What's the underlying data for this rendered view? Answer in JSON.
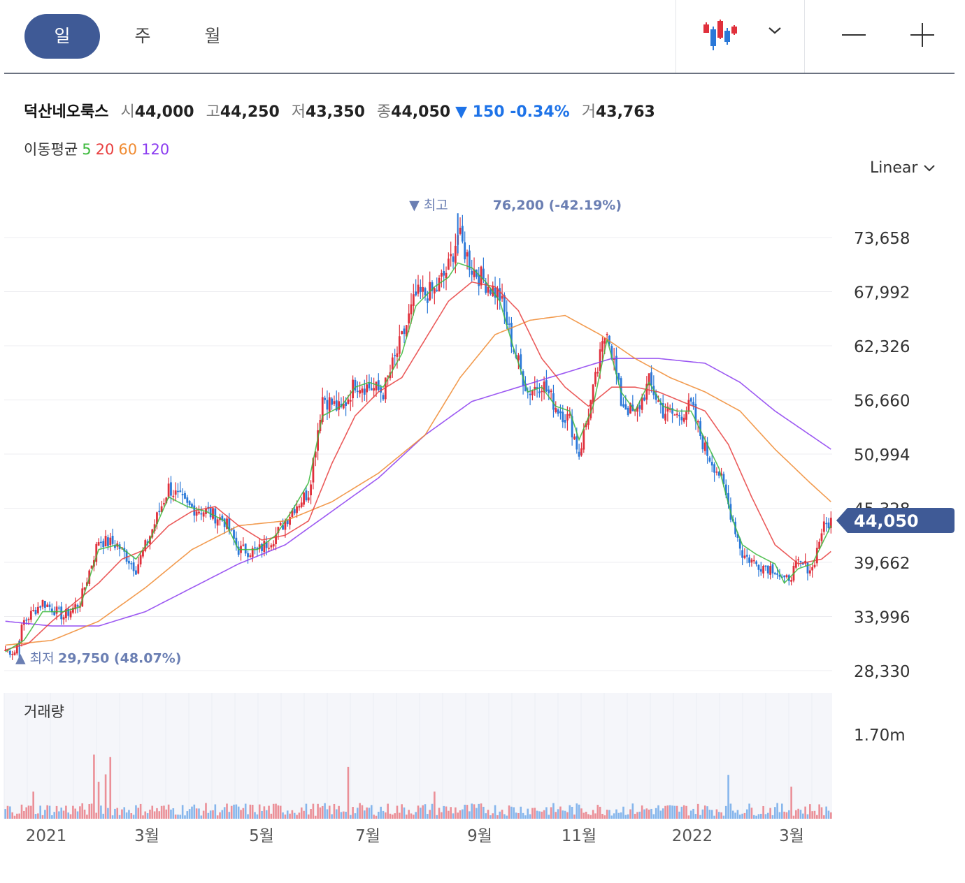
{
  "tabs": [
    "일",
    "주",
    "월"
  ],
  "active_tab": "일",
  "toolbar_icons": [
    "candlestick-chart-icon",
    "chevron-down-icon",
    "zoom-out-icon",
    "zoom-in-icon"
  ],
  "stock": {
    "name": "덕산네오룩스",
    "open_label": "시",
    "open": "44,000",
    "high_label": "고",
    "high": "44,250",
    "low_label": "저",
    "low": "43,350",
    "close_label": "종",
    "close": "44,050",
    "change": "▼ 150 -0.34%",
    "volume_label": "거",
    "volume": "43,763"
  },
  "moving_average": {
    "label": "이동평균",
    "periods": [
      "5",
      "20",
      "60",
      "120"
    ],
    "colors": [
      "#3cb93c",
      "#e83e3e",
      "#f08a30",
      "#8b3cf0"
    ]
  },
  "scale_label": "Linear",
  "colors": {
    "up": "#e0303c",
    "down": "#2a78d8",
    "accent": "#3f5a96",
    "annotation": "#6b7fb3"
  },
  "chart_data": {
    "type": "candlestick",
    "y_ticks": [
      "73,658",
      "67,992",
      "62,326",
      "56,660",
      "50,994",
      "45,328",
      "39,662",
      "33,996",
      "28,330"
    ],
    "ylim": [
      28330,
      76200
    ],
    "x_ticks": [
      "2021",
      "3월",
      "5월",
      "7월",
      "9월",
      "11월",
      "2022",
      "3월"
    ],
    "current_price_label": "44,050",
    "high_annotation": {
      "label": "▼ 최고",
      "value": "76,200 (-42.19%)"
    },
    "low_annotation": {
      "label": "▲ 최저",
      "value": "29,750 (48.07%)"
    },
    "volume_label": "거래량",
    "volume_tick": "1.70m",
    "close_anchors": [
      [
        0,
        30500
      ],
      [
        4,
        30300
      ],
      [
        8,
        33500
      ],
      [
        16,
        35500
      ],
      [
        25,
        34000
      ],
      [
        32,
        35500
      ],
      [
        40,
        42000
      ],
      [
        48,
        41500
      ],
      [
        56,
        39000
      ],
      [
        62,
        42500
      ],
      [
        70,
        47500
      ],
      [
        78,
        45500
      ],
      [
        86,
        45000
      ],
      [
        94,
        44000
      ],
      [
        100,
        41000
      ],
      [
        108,
        40800
      ],
      [
        116,
        42500
      ],
      [
        124,
        45500
      ],
      [
        130,
        47000
      ],
      [
        136,
        57000
      ],
      [
        144,
        55500
      ],
      [
        150,
        58500
      ],
      [
        156,
        58000
      ],
      [
        162,
        57500
      ],
      [
        170,
        63000
      ],
      [
        176,
        67500
      ],
      [
        184,
        68000
      ],
      [
        190,
        70500
      ],
      [
        194,
        74000
      ],
      [
        200,
        70500
      ],
      [
        206,
        69000
      ],
      [
        212,
        67500
      ],
      [
        218,
        62000
      ],
      [
        224,
        57500
      ],
      [
        230,
        58500
      ],
      [
        236,
        56000
      ],
      [
        242,
        54500
      ],
      [
        246,
        51000
      ],
      [
        252,
        57500
      ],
      [
        258,
        64500
      ],
      [
        264,
        56500
      ],
      [
        270,
        55000
      ],
      [
        276,
        58500
      ],
      [
        282,
        55500
      ],
      [
        288,
        55000
      ],
      [
        294,
        56000
      ],
      [
        300,
        51500
      ],
      [
        306,
        49000
      ],
      [
        312,
        44000
      ],
      [
        316,
        40500
      ],
      [
        322,
        39500
      ],
      [
        330,
        39000
      ],
      [
        334,
        37500
      ],
      [
        340,
        39500
      ],
      [
        346,
        39000
      ],
      [
        350,
        43000
      ],
      [
        354,
        44050
      ]
    ],
    "ma5_anchors": [
      [
        0,
        30300
      ],
      [
        8,
        31500
      ],
      [
        16,
        34500
      ],
      [
        25,
        34500
      ],
      [
        32,
        35000
      ],
      [
        40,
        41000
      ],
      [
        48,
        41500
      ],
      [
        56,
        40000
      ],
      [
        62,
        42000
      ],
      [
        70,
        46500
      ],
      [
        78,
        45500
      ],
      [
        86,
        45000
      ],
      [
        94,
        44000
      ],
      [
        100,
        41000
      ],
      [
        108,
        41000
      ],
      [
        116,
        42500
      ],
      [
        124,
        45500
      ],
      [
        130,
        48000
      ],
      [
        136,
        55000
      ],
      [
        144,
        56000
      ],
      [
        150,
        58000
      ],
      [
        156,
        58500
      ],
      [
        162,
        58000
      ],
      [
        170,
        61500
      ],
      [
        176,
        66500
      ],
      [
        184,
        68500
      ],
      [
        190,
        69500
      ],
      [
        194,
        71000
      ],
      [
        200,
        70500
      ],
      [
        206,
        69000
      ],
      [
        212,
        67000
      ],
      [
        218,
        62000
      ],
      [
        224,
        57500
      ],
      [
        230,
        58000
      ],
      [
        236,
        56000
      ],
      [
        242,
        55500
      ],
      [
        246,
        52500
      ],
      [
        252,
        56000
      ],
      [
        258,
        63000
      ],
      [
        264,
        57500
      ],
      [
        270,
        55500
      ],
      [
        276,
        58500
      ],
      [
        282,
        56000
      ],
      [
        288,
        55500
      ],
      [
        294,
        55500
      ],
      [
        300,
        52500
      ],
      [
        306,
        49500
      ],
      [
        312,
        44000
      ],
      [
        316,
        41500
      ],
      [
        322,
        40500
      ],
      [
        330,
        39500
      ],
      [
        334,
        37500
      ],
      [
        340,
        39000
      ],
      [
        346,
        39500
      ],
      [
        350,
        41500
      ],
      [
        354,
        43500
      ]
    ],
    "ma20_anchors": [
      [
        0,
        30500
      ],
      [
        10,
        31200
      ],
      [
        20,
        33500
      ],
      [
        30,
        35500
      ],
      [
        40,
        37500
      ],
      [
        50,
        40000
      ],
      [
        60,
        41000
      ],
      [
        70,
        43500
      ],
      [
        80,
        45000
      ],
      [
        90,
        45500
      ],
      [
        100,
        43500
      ],
      [
        110,
        42000
      ],
      [
        120,
        42500
      ],
      [
        130,
        44000
      ],
      [
        140,
        50000
      ],
      [
        150,
        55000
      ],
      [
        160,
        57500
      ],
      [
        170,
        59000
      ],
      [
        180,
        63000
      ],
      [
        190,
        67000
      ],
      [
        200,
        69000
      ],
      [
        210,
        68500
      ],
      [
        220,
        66000
      ],
      [
        230,
        61000
      ],
      [
        240,
        58000
      ],
      [
        250,
        56000
      ],
      [
        260,
        58000
      ],
      [
        270,
        58000
      ],
      [
        280,
        57500
      ],
      [
        290,
        56500
      ],
      [
        300,
        55500
      ],
      [
        310,
        52000
      ],
      [
        320,
        46500
      ],
      [
        330,
        41500
      ],
      [
        340,
        39500
      ],
      [
        350,
        40000
      ],
      [
        354,
        40800
      ]
    ],
    "ma60_anchors": [
      [
        0,
        31000
      ],
      [
        20,
        31500
      ],
      [
        40,
        33500
      ],
      [
        60,
        37000
      ],
      [
        80,
        41000
      ],
      [
        100,
        43500
      ],
      [
        120,
        44000
      ],
      [
        140,
        46000
      ],
      [
        160,
        49000
      ],
      [
        180,
        53000
      ],
      [
        195,
        59000
      ],
      [
        210,
        63500
      ],
      [
        225,
        65000
      ],
      [
        240,
        65500
      ],
      [
        255,
        63500
      ],
      [
        270,
        61000
      ],
      [
        285,
        59000
      ],
      [
        300,
        57500
      ],
      [
        315,
        55500
      ],
      [
        330,
        51500
      ],
      [
        345,
        48000
      ],
      [
        354,
        46000
      ]
    ],
    "ma120_anchors": [
      [
        0,
        33500
      ],
      [
        20,
        33000
      ],
      [
        40,
        33000
      ],
      [
        60,
        34500
      ],
      [
        80,
        37000
      ],
      [
        100,
        39500
      ],
      [
        120,
        41500
      ],
      [
        140,
        45000
      ],
      [
        160,
        48500
      ],
      [
        180,
        53000
      ],
      [
        200,
        56500
      ],
      [
        220,
        58000
      ],
      [
        240,
        59500
      ],
      [
        260,
        61000
      ],
      [
        280,
        61000
      ],
      [
        300,
        60500
      ],
      [
        315,
        58500
      ],
      [
        330,
        55500
      ],
      [
        354,
        51500
      ]
    ],
    "volume_max": 1700000,
    "volume_spikes": [
      [
        38,
        1300000
      ],
      [
        45,
        1250000
      ],
      [
        43,
        900000
      ],
      [
        147,
        1050000
      ],
      [
        310,
        890000
      ],
      [
        337,
        650000
      ],
      [
        40,
        750000
      ],
      [
        12,
        550000
      ],
      [
        184,
        550000
      ]
    ]
  }
}
